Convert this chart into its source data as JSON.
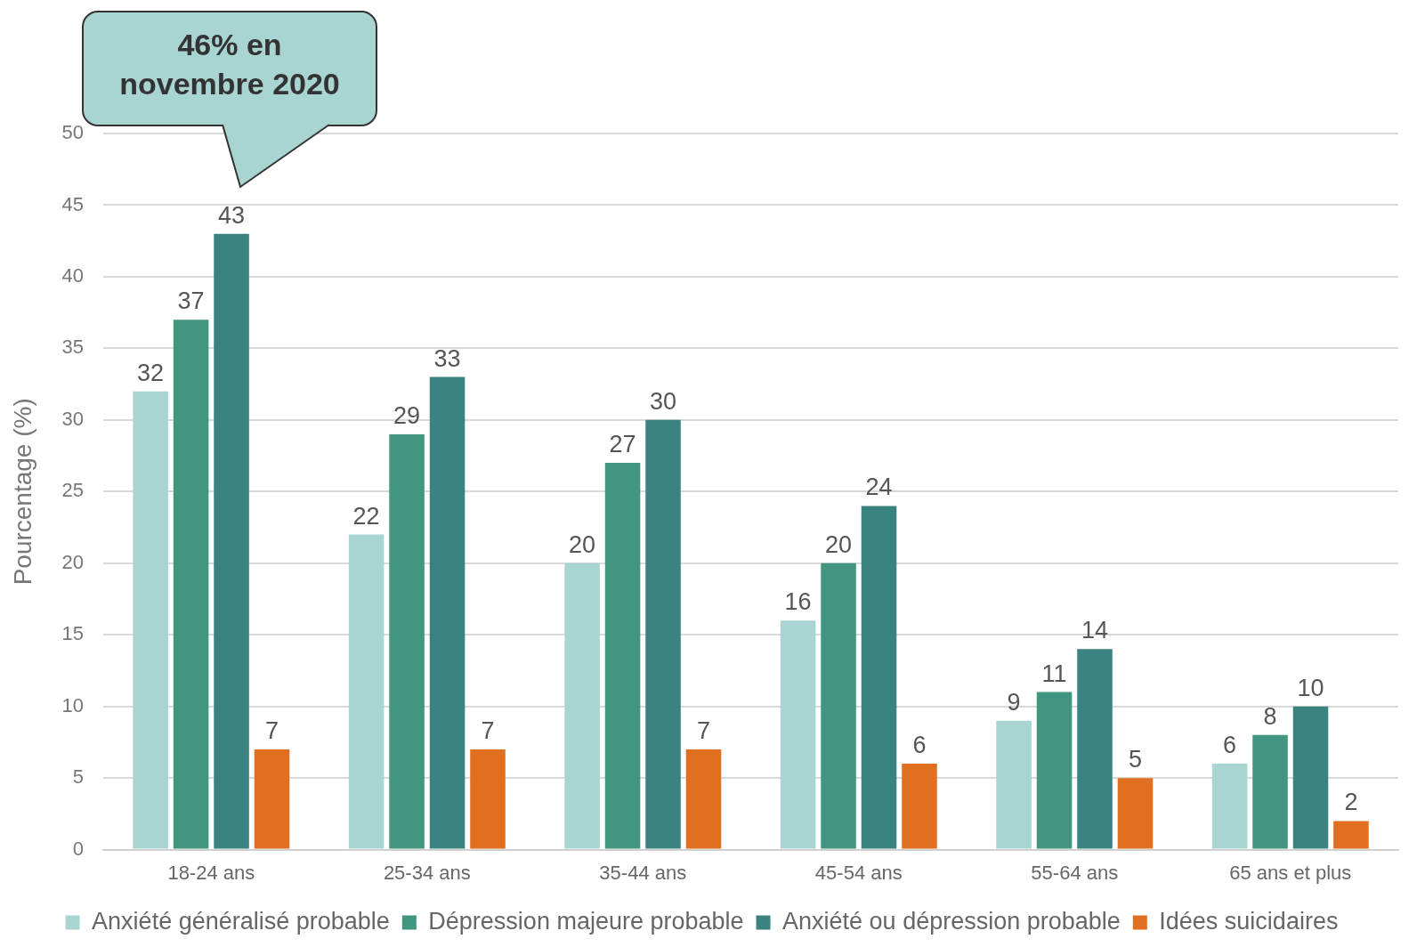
{
  "chart_data": {
    "type": "bar",
    "ylabel": "Pourcentage (%)",
    "categories": [
      "18-24 ans",
      "25-34 ans",
      "35-44 ans",
      "45-54 ans",
      "55-64 ans",
      "65 ans et plus"
    ],
    "series": [
      {
        "name": "Anxiété généralisé probable",
        "color": "#a8d5d2",
        "values": [
          32,
          22,
          20,
          16,
          9,
          6
        ]
      },
      {
        "name": "Dépression majeure probable",
        "color": "#42957e",
        "values": [
          37,
          29,
          27,
          20,
          11,
          8
        ]
      },
      {
        "name": "Anxiété ou dépression probable",
        "color": "#3b8380",
        "values": [
          43,
          33,
          30,
          24,
          14,
          10
        ]
      },
      {
        "name": "Idées suicidaires",
        "color": "#e07020",
        "values": [
          7,
          7,
          7,
          6,
          5,
          2
        ]
      }
    ],
    "ylim": [
      0,
      50
    ],
    "yticks": [
      0,
      5,
      10,
      15,
      20,
      25,
      30,
      35,
      40,
      45,
      50
    ],
    "grid": "y",
    "legend": "bottom",
    "data_labels": true,
    "annotations": [
      "46% en\nnovembre 2020"
    ]
  }
}
